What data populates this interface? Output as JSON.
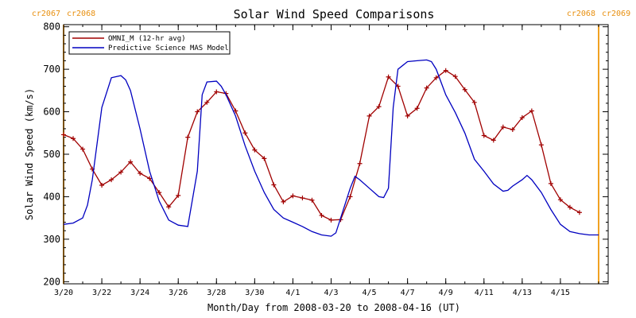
{
  "chart_data": {
    "type": "line",
    "title": "Solar Wind Speed Comparisons",
    "xlabel": "Month/Day from 2008-03-20 to 2008-04-16 (UT)",
    "ylabel": "Solar Wind Speed (km/s)",
    "xlim": [
      "2008-03-20T00:00",
      "2008-04-17T12:00"
    ],
    "ylim": [
      195,
      805
    ],
    "yticks": [
      200,
      300,
      400,
      500,
      600,
      700,
      800
    ],
    "xticks": [
      {
        "date": "2008-03-20",
        "label": "3/20"
      },
      {
        "date": "2008-03-22",
        "label": "3/22"
      },
      {
        "date": "2008-03-24",
        "label": "3/24"
      },
      {
        "date": "2008-03-26",
        "label": "3/26"
      },
      {
        "date": "2008-03-28",
        "label": "3/28"
      },
      {
        "date": "2008-03-30",
        "label": "3/30"
      },
      {
        "date": "2008-04-01",
        "label": "4/1"
      },
      {
        "date": "2008-04-03",
        "label": "4/3"
      },
      {
        "date": "2008-04-05",
        "label": "4/5"
      },
      {
        "date": "2008-04-07",
        "label": "4/7"
      },
      {
        "date": "2008-04-09",
        "label": "4/9"
      },
      {
        "date": "2008-04-11",
        "label": "4/11"
      },
      {
        "date": "2008-04-13",
        "label": "4/13"
      },
      {
        "date": "2008-04-15",
        "label": "4/15"
      }
    ],
    "carrington_markers": [
      {
        "date": "2008-03-20T00:00",
        "left_label": "cr2067",
        "right_label": "cr2068"
      },
      {
        "date": "2008-04-17T00:00",
        "left_label": "cr2068",
        "right_label": "cr2069"
      }
    ],
    "legend_position": "top-left",
    "grid": false,
    "series": [
      {
        "name": "OMNI_M (12-hr avg)",
        "color": "#a00000",
        "marker": "plus",
        "x": [
          "2008-03-20T00:00",
          "2008-03-20T12:00",
          "2008-03-21T00:00",
          "2008-03-21T12:00",
          "2008-03-22T00:00",
          "2008-03-22T12:00",
          "2008-03-23T00:00",
          "2008-03-23T12:00",
          "2008-03-24T00:00",
          "2008-03-24T12:00",
          "2008-03-25T00:00",
          "2008-03-25T12:00",
          "2008-03-26T00:00",
          "2008-03-26T12:00",
          "2008-03-27T00:00",
          "2008-03-27T12:00",
          "2008-03-28T00:00",
          "2008-03-28T12:00",
          "2008-03-29T00:00",
          "2008-03-29T12:00",
          "2008-03-30T00:00",
          "2008-03-30T12:00",
          "2008-03-31T00:00",
          "2008-03-31T12:00",
          "2008-04-01T00:00",
          "2008-04-01T12:00",
          "2008-04-02T00:00",
          "2008-04-02T12:00",
          "2008-04-03T00:00",
          "2008-04-03T12:00",
          "2008-04-04T00:00",
          "2008-04-04T12:00",
          "2008-04-05T00:00",
          "2008-04-05T12:00",
          "2008-04-06T00:00",
          "2008-04-06T12:00",
          "2008-04-07T00:00",
          "2008-04-07T12:00",
          "2008-04-08T00:00",
          "2008-04-08T12:00",
          "2008-04-09T00:00",
          "2008-04-09T12:00",
          "2008-04-10T00:00",
          "2008-04-10T12:00",
          "2008-04-11T00:00",
          "2008-04-11T12:00",
          "2008-04-12T00:00",
          "2008-04-12T12:00",
          "2008-04-13T00:00",
          "2008-04-13T12:00",
          "2008-04-14T00:00",
          "2008-04-14T12:00",
          "2008-04-15T00:00",
          "2008-04-15T12:00",
          "2008-04-16T00:00"
        ],
        "y": [
          546,
          537,
          512,
          465,
          427,
          440,
          458,
          482,
          455,
          443,
          410,
          376,
          403,
          540,
          600,
          622,
          647,
          643,
          602,
          550,
          510,
          490,
          428,
          388,
          402,
          397,
          392,
          356,
          345,
          346,
          400,
          478,
          590,
          612,
          682,
          660,
          590,
          608,
          656,
          680,
          697,
          683,
          652,
          622,
          544,
          533,
          564,
          558,
          586,
          602,
          522,
          431,
          393,
          375,
          363
        ]
      },
      {
        "name": "Predictive Science MAS Model",
        "color": "#0000c0",
        "x": [
          "2008-03-20T00:00",
          "2008-03-20T12:00",
          "2008-03-21T00:00",
          "2008-03-21T06:00",
          "2008-03-21T12:00",
          "2008-03-22T00:00",
          "2008-03-22T12:00",
          "2008-03-23T00:00",
          "2008-03-23T06:00",
          "2008-03-23T12:00",
          "2008-03-24T00:00",
          "2008-03-24T12:00",
          "2008-03-25T00:00",
          "2008-03-25T12:00",
          "2008-03-26T00:00",
          "2008-03-26T12:00",
          "2008-03-27T00:00",
          "2008-03-27T06:00",
          "2008-03-27T12:00",
          "2008-03-28T00:00",
          "2008-03-28T06:00",
          "2008-03-28T12:00",
          "2008-03-29T00:00",
          "2008-03-29T12:00",
          "2008-03-30T00:00",
          "2008-03-30T12:00",
          "2008-03-31T00:00",
          "2008-03-31T12:00",
          "2008-04-01T00:00",
          "2008-04-01T12:00",
          "2008-04-02T00:00",
          "2008-04-02T12:00",
          "2008-04-03T00:00",
          "2008-04-03T06:00",
          "2008-04-03T12:00",
          "2008-04-04T00:00",
          "2008-04-04T06:00",
          "2008-04-04T12:00",
          "2008-04-05T00:00",
          "2008-04-05T12:00",
          "2008-04-05T18:00",
          "2008-04-06T00:00",
          "2008-04-06T06:00",
          "2008-04-06T12:00",
          "2008-04-07T00:00",
          "2008-04-07T12:00",
          "2008-04-08T00:00",
          "2008-04-08T06:00",
          "2008-04-08T12:00",
          "2008-04-09T00:00",
          "2008-04-09T12:00",
          "2008-04-10T00:00",
          "2008-04-10T12:00",
          "2008-04-11T00:00",
          "2008-04-11T12:00",
          "2008-04-12T00:00",
          "2008-04-12T06:00",
          "2008-04-12T12:00",
          "2008-04-13T00:00",
          "2008-04-13T06:00",
          "2008-04-13T12:00",
          "2008-04-14T00:00",
          "2008-04-14T12:00",
          "2008-04-15T00:00",
          "2008-04-15T12:00",
          "2008-04-16T00:00",
          "2008-04-16T12:00",
          "2008-04-17T00:00"
        ],
        "y": [
          335,
          338,
          350,
          380,
          440,
          610,
          680,
          685,
          675,
          650,
          560,
          460,
          390,
          345,
          333,
          330,
          460,
          640,
          670,
          672,
          660,
          640,
          590,
          520,
          460,
          410,
          370,
          350,
          340,
          330,
          318,
          310,
          307,
          315,
          350,
          420,
          448,
          440,
          420,
          400,
          398,
          420,
          610,
          700,
          718,
          720,
          722,
          718,
          700,
          640,
          598,
          550,
          488,
          460,
          430,
          413,
          415,
          425,
          440,
          450,
          440,
          410,
          370,
          335,
          318,
          313,
          310,
          310
        ]
      }
    ]
  }
}
